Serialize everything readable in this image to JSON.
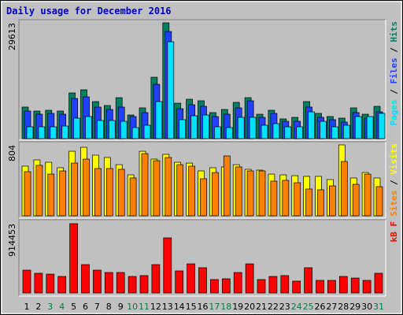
{
  "title": "Daily usage for December 2016",
  "legend_separator": " / ",
  "chart_data": [
    {
      "type": "bar",
      "categories": [
        "1",
        "2",
        "3",
        "4",
        "5",
        "6",
        "7",
        "8",
        "9",
        "10",
        "11",
        "12",
        "13",
        "14",
        "15",
        "16",
        "17",
        "18",
        "19",
        "20",
        "21",
        "22",
        "23",
        "24",
        "25",
        "26",
        "27",
        "28",
        "29",
        "30",
        "31"
      ],
      "ylim": [
        0,
        29613
      ],
      "yticks": [
        29613
      ],
      "series": [
        {
          "name": "Hits",
          "color": "#008060",
          "values": [
            8060,
            7050,
            7250,
            7050,
            11680,
            12490,
            9470,
            8460,
            10470,
            6040,
            7860,
            15710,
            29613,
            9060,
            10070,
            9670,
            6650,
            7450,
            9270,
            10470,
            6240,
            7250,
            5040,
            5440,
            9470,
            6450,
            5640,
            5240,
            7860,
            6240,
            8260
          ]
        },
        {
          "name": "Files",
          "color": "#2040ff",
          "values": [
            7050,
            6250,
            6450,
            6250,
            10270,
            10670,
            8060,
            7450,
            8060,
            5640,
            6650,
            13890,
            27390,
            7650,
            8660,
            8260,
            5640,
            6250,
            7860,
            9670,
            5440,
            6450,
            4430,
            4430,
            8060,
            5440,
            4840,
            4230,
            6650,
            5240,
            6850
          ]
        },
        {
          "name": "Pages",
          "color": "#00e0ff",
          "values": [
            3020,
            3020,
            3020,
            3220,
            5240,
            5640,
            4640,
            4640,
            4430,
            2820,
            3420,
            9470,
            24770,
            4840,
            5840,
            6040,
            3020,
            2820,
            5440,
            5440,
            3420,
            3830,
            3020,
            3020,
            6850,
            4430,
            3020,
            3420,
            5640,
            5640,
            6450
          ]
        }
      ]
    },
    {
      "type": "bar",
      "categories": [
        "1",
        "2",
        "3",
        "4",
        "5",
        "6",
        "7",
        "8",
        "9",
        "10",
        "11",
        "12",
        "13",
        "14",
        "15",
        "16",
        "17",
        "18",
        "19",
        "20",
        "21",
        "22",
        "23",
        "24",
        "25",
        "26",
        "27",
        "28",
        "29",
        "30",
        "31"
      ],
      "ylim": [
        0,
        804
      ],
      "yticks": [
        804
      ],
      "series": [
        {
          "name": "Visits",
          "color": "#ffff00",
          "values": [
            563,
            634,
            607,
            545,
            732,
            777,
            688,
            661,
            580,
            464,
            732,
            643,
            697,
            607,
            598,
            509,
            545,
            554,
            580,
            527,
            518,
            473,
            464,
            455,
            447,
            447,
            411,
            804,
            429,
            491,
            429
          ]
        },
        {
          "name": "Sites",
          "color": "#ff8000",
          "values": [
            500,
            572,
            473,
            509,
            598,
            643,
            536,
            536,
            527,
            429,
            705,
            625,
            661,
            580,
            563,
            420,
            491,
            679,
            554,
            509,
            509,
            393,
            402,
            375,
            304,
            295,
            339,
            616,
            357,
            473,
            330
          ]
        }
      ]
    },
    {
      "type": "bar",
      "categories": [
        "1",
        "2",
        "3",
        "4",
        "5",
        "6",
        "7",
        "8",
        "9",
        "10",
        "11",
        "12",
        "13",
        "14",
        "15",
        "16",
        "17",
        "18",
        "19",
        "20",
        "21",
        "22",
        "23",
        "24",
        "25",
        "26",
        "27",
        "28",
        "29",
        "30",
        "31"
      ],
      "ylim": [
        0,
        914453
      ],
      "yticks": [
        914453
      ],
      "label_colors": [
        "#000000",
        "#000000",
        "#008040",
        "#008040",
        "#000000",
        "#000000",
        "#000000",
        "#000000",
        "#000000",
        "#008040",
        "#008040",
        "#000000",
        "#000000",
        "#000000",
        "#000000",
        "#000000",
        "#008040",
        "#008040",
        "#000000",
        "#000000",
        "#000000",
        "#000000",
        "#000000",
        "#008040",
        "#008040",
        "#000000",
        "#000000",
        "#000000",
        "#000000",
        "#000000",
        "#008040"
      ],
      "series": [
        {
          "name": "kB F",
          "color": "#ff0000",
          "values": [
            301000,
            260000,
            249000,
            218000,
            914453,
            374000,
            301000,
            270000,
            270000,
            218000,
            229000,
            374000,
            727000,
            291000,
            384000,
            333000,
            177000,
            187000,
            270000,
            384000,
            177000,
            218000,
            229000,
            156000,
            333000,
            166000,
            166000,
            218000,
            197000,
            166000,
            260000
          ]
        }
      ]
    }
  ]
}
